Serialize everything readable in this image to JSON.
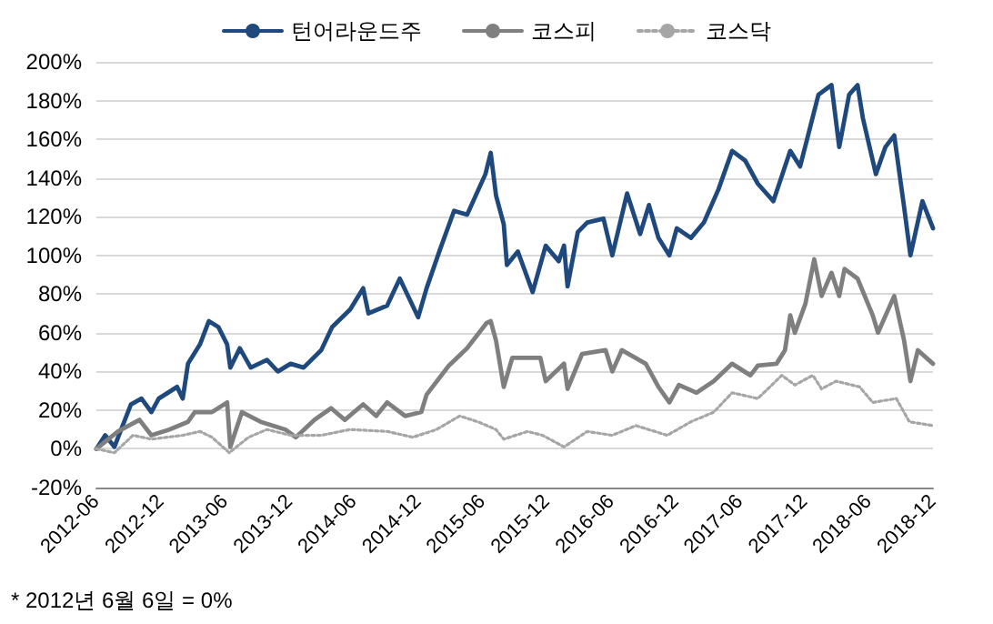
{
  "chart_data": {
    "type": "line",
    "annotations": [
      "* 2012년 6월 6일 = 0%"
    ],
    "xlim": [
      "2012-06-06",
      "2018-12-06"
    ],
    "xticks": [
      {
        "value": "2012-06-06",
        "label": "2012-06"
      },
      {
        "value": "2012-12-06",
        "label": "2012-12"
      },
      {
        "value": "2013-06-06",
        "label": "2013-06"
      },
      {
        "value": "2013-12-06",
        "label": "2013-12"
      },
      {
        "value": "2014-06-06",
        "label": "2014-06"
      },
      {
        "value": "2014-12-06",
        "label": "2014-12"
      },
      {
        "value": "2015-06-06",
        "label": "2015-06"
      },
      {
        "value": "2015-12-06",
        "label": "2015-12"
      },
      {
        "value": "2016-06-06",
        "label": "2016-06"
      },
      {
        "value": "2016-12-06",
        "label": "2016-12"
      },
      {
        "value": "2017-06-06",
        "label": "2017-06"
      },
      {
        "value": "2017-12-06",
        "label": "2017-12"
      },
      {
        "value": "2018-06-06",
        "label": "2018-06"
      },
      {
        "value": "2018-12-06",
        "label": "2018-12"
      }
    ],
    "ylim": [
      -20,
      200
    ],
    "yticks": [
      {
        "value": -20,
        "label": "-20%"
      },
      {
        "value": 0,
        "label": "0%"
      },
      {
        "value": 20,
        "label": "20%"
      },
      {
        "value": 40,
        "label": "40%"
      },
      {
        "value": 60,
        "label": "60%"
      },
      {
        "value": 80,
        "label": "80%"
      },
      {
        "value": 100,
        "label": "100%"
      },
      {
        "value": 120,
        "label": "120%"
      },
      {
        "value": 140,
        "label": "140%"
      },
      {
        "value": 160,
        "label": "160%"
      },
      {
        "value": 180,
        "label": "180%"
      },
      {
        "value": 200,
        "label": "200%"
      }
    ],
    "grid": "y",
    "legend": "top",
    "marker": "none",
    "series": [
      {
        "name": "턴어라운드주",
        "color": "#1f497d",
        "line_style": "solid",
        "x": [
          "2012-06-06",
          "2012-07-01",
          "2012-07-27",
          "2012-09-12",
          "2012-10-12",
          "2012-11-09",
          "2012-11-30",
          "2013-01-21",
          "2013-02-06",
          "2013-02-21",
          "2013-03-27",
          "2013-04-21",
          "2013-05-18",
          "2013-06-12",
          "2013-06-21",
          "2013-07-18",
          "2013-08-18",
          "2013-10-03",
          "2013-11-03",
          "2013-12-09",
          "2014-01-15",
          "2014-03-06",
          "2014-04-06",
          "2014-05-27",
          "2014-07-03",
          "2014-07-18",
          "2014-09-09",
          "2014-10-15",
          "2014-12-06",
          "2014-12-30",
          "2015-02-06",
          "2015-03-18",
          "2015-04-24",
          "2015-06-15",
          "2015-06-30",
          "2015-07-15",
          "2015-08-06",
          "2015-08-15",
          "2015-09-15",
          "2015-10-27",
          "2015-12-03",
          "2016-01-09",
          "2016-01-24",
          "2016-02-03",
          "2016-03-03",
          "2016-03-30",
          "2016-05-15",
          "2016-06-09",
          "2016-07-21",
          "2016-08-27",
          "2016-09-21",
          "2016-10-18",
          "2016-11-18",
          "2016-12-09",
          "2017-01-18",
          "2017-02-24",
          "2017-04-06",
          "2017-05-15",
          "2017-06-21",
          "2017-07-27",
          "2017-09-09",
          "2017-10-27",
          "2017-11-24",
          "2017-12-18",
          "2018-01-15",
          "2018-02-21",
          "2018-03-15",
          "2018-04-12",
          "2018-05-06",
          "2018-05-21",
          "2018-06-27",
          "2018-07-24",
          "2018-08-18",
          "2018-09-15",
          "2018-10-03",
          "2018-11-06",
          "2018-12-06"
        ],
        "values": [
          0,
          7,
          1,
          23,
          26,
          19,
          26,
          32,
          26,
          44,
          54,
          66,
          63,
          54,
          42,
          52,
          42,
          46,
          40,
          44,
          42,
          51,
          63,
          72,
          83,
          70,
          74,
          88,
          68,
          83,
          103,
          123,
          121,
          142,
          153,
          131,
          116,
          95,
          102,
          81,
          105,
          97,
          105,
          84,
          112,
          117,
          119,
          100,
          132,
          111,
          126,
          109,
          100,
          114,
          109,
          117,
          134,
          154,
          149,
          137,
          128,
          154,
          146,
          163,
          183,
          188,
          156,
          183,
          188,
          171,
          142,
          156,
          162,
          125,
          100,
          128,
          114
        ]
      },
      {
        "name": "코스피",
        "color": "#7f7f7f",
        "line_style": "solid",
        "x": [
          "2012-06-06",
          "2012-08-06",
          "2012-10-06",
          "2012-11-09",
          "2012-12-30",
          "2013-02-21",
          "2013-03-12",
          "2013-04-30",
          "2013-06-12",
          "2013-06-21",
          "2013-07-24",
          "2013-09-15",
          "2013-11-24",
          "2013-12-24",
          "2014-02-15",
          "2014-04-03",
          "2014-05-12",
          "2014-07-03",
          "2014-08-09",
          "2014-09-09",
          "2014-10-30",
          "2014-12-15",
          "2014-12-30",
          "2015-03-03",
          "2015-04-24",
          "2015-06-18",
          "2015-06-30",
          "2015-07-15",
          "2015-08-06",
          "2015-08-30",
          "2015-11-18",
          "2015-12-03",
          "2016-01-24",
          "2016-02-03",
          "2016-03-15",
          "2016-05-21",
          "2016-06-09",
          "2016-07-06",
          "2016-09-12",
          "2016-10-18",
          "2016-11-18",
          "2016-12-15",
          "2017-02-03",
          "2017-03-24",
          "2017-05-15",
          "2017-07-06",
          "2017-07-27",
          "2017-09-18",
          "2017-10-12",
          "2017-10-27",
          "2017-11-09",
          "2017-12-09",
          "2018-01-03",
          "2018-01-24",
          "2018-02-21",
          "2018-03-15",
          "2018-03-30",
          "2018-05-06",
          "2018-06-18",
          "2018-07-03",
          "2018-08-18",
          "2018-09-15",
          "2018-10-03",
          "2018-10-24",
          "2018-12-06"
        ],
        "values": [
          0,
          9,
          15,
          7,
          10,
          14,
          19,
          19,
          24,
          1,
          19,
          14,
          10,
          6,
          15,
          21,
          15,
          23,
          17,
          24,
          17,
          19,
          28,
          43,
          52,
          65,
          66,
          56,
          32,
          47,
          47,
          35,
          44,
          31,
          49,
          51,
          40,
          51,
          44,
          32,
          24,
          33,
          29,
          35,
          44,
          38,
          43,
          44,
          51,
          69,
          60,
          75,
          98,
          79,
          91,
          79,
          93,
          88,
          69,
          60,
          79,
          56,
          35,
          51,
          44
        ]
      },
      {
        "name": "코스닥",
        "color": "#a6a6a6",
        "line_style": "dotted",
        "x": [
          "2012-06-06",
          "2012-07-27",
          "2012-09-18",
          "2012-11-09",
          "2013-02-06",
          "2013-03-27",
          "2013-04-30",
          "2013-06-18",
          "2013-08-12",
          "2013-10-03",
          "2013-12-09",
          "2014-03-06",
          "2014-05-27",
          "2014-09-09",
          "2014-11-21",
          "2015-01-27",
          "2015-04-03",
          "2015-05-24",
          "2015-07-15",
          "2015-08-06",
          "2015-10-12",
          "2015-11-24",
          "2016-01-24",
          "2016-03-30",
          "2016-06-09",
          "2016-08-15",
          "2016-11-12",
          "2017-01-18",
          "2017-03-24",
          "2017-05-15",
          "2017-07-27",
          "2017-10-03",
          "2017-11-09",
          "2017-12-30",
          "2018-01-24",
          "2018-03-06",
          "2018-05-12",
          "2018-06-18",
          "2018-08-24",
          "2018-09-30",
          "2018-12-06"
        ],
        "values": [
          0,
          -2,
          7,
          5,
          7,
          9,
          6,
          -2,
          6,
          10,
          7,
          7,
          10,
          9,
          6,
          10,
          17,
          14,
          10,
          5,
          9,
          7,
          1,
          9,
          7,
          12,
          7,
          14,
          19,
          29,
          26,
          38,
          33,
          38,
          31,
          35,
          32,
          24,
          26,
          14,
          12
        ]
      }
    ]
  }
}
